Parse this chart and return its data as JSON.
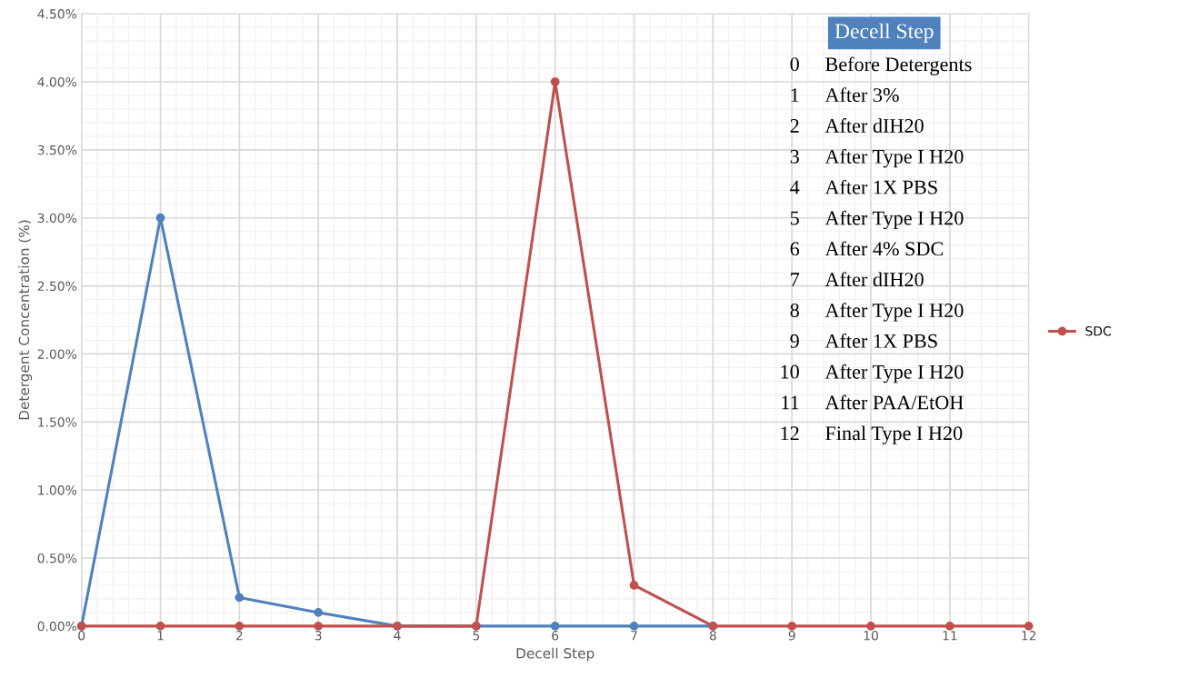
{
  "chart_data": {
    "type": "line",
    "xlabel": "Decell Step",
    "ylabel": "Detergent Concentration (%)",
    "x": [
      0,
      1,
      2,
      3,
      4,
      5,
      6,
      7,
      8,
      9,
      10,
      11,
      12
    ],
    "series": [
      {
        "color": "#4f81bd",
        "values": [
          0,
          3.0,
          0.21,
          0.1,
          0,
          0,
          0,
          0,
          0,
          null,
          null,
          null,
          null
        ]
      },
      {
        "name": "SDC",
        "color": "#c0504d",
        "values": [
          0,
          0,
          0,
          0,
          0,
          0,
          4.0,
          0.3,
          0,
          0,
          0,
          0,
          0
        ]
      }
    ],
    "xlim": [
      0,
      12
    ],
    "xticks": [
      0,
      1,
      2,
      3,
      4,
      5,
      6,
      7,
      8,
      9,
      10,
      11,
      12
    ],
    "ylim": [
      0,
      4.5
    ],
    "yticks": [
      {
        "value": 0,
        "label": "0.00%"
      },
      {
        "value": 0.5,
        "label": "0.50%"
      },
      {
        "value": 1,
        "label": "1.00%"
      },
      {
        "value": 1.5,
        "label": "1.50%"
      },
      {
        "value": 2,
        "label": "2.00%"
      },
      {
        "value": 2.5,
        "label": "2.50%"
      },
      {
        "value": 3,
        "label": "3.00%"
      },
      {
        "value": 3.5,
        "label": "3.50%"
      },
      {
        "value": 4,
        "label": "4.00%"
      },
      {
        "value": 4.5,
        "label": "4.50%"
      }
    ],
    "grid": true,
    "legend": "right",
    "marker": "circle",
    "line_style": "solid",
    "annotations": [
      "Decell Step",
      "0",
      "Before Detergents",
      "1",
      "After 3%",
      "2",
      "After dIH20",
      "3",
      "After Type I H20",
      "4",
      "After 1X PBS",
      "5",
      "After Type I H20",
      "6",
      "After 4% SDC",
      "7",
      "After dIH20",
      "8",
      "After Type I H20",
      "9",
      "After 1X PBS",
      "10",
      "After Type I H20",
      "11",
      "After PAA/EtOH",
      "12",
      "Final Type I H20"
    ]
  }
}
